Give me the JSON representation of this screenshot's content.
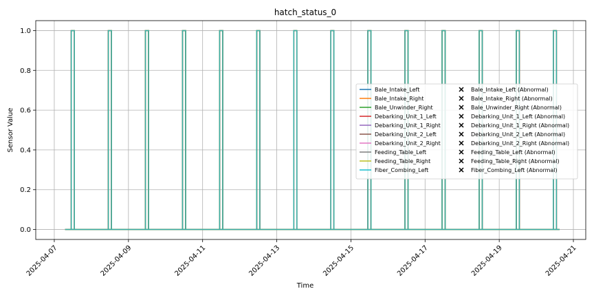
{
  "chart_data": {
    "type": "line",
    "title": "hatch_status_0",
    "xlabel": "Time",
    "ylabel": "Sensor Value",
    "xlim": [
      "2025-04-06T12:00",
      "2025-04-21T08:00"
    ],
    "ylim": [
      -0.05,
      1.05
    ],
    "x_ticks": [
      "2025-04-07",
      "2025-04-09",
      "2025-04-11",
      "2025-04-13",
      "2025-04-15",
      "2025-04-17",
      "2025-04-19",
      "2025-04-21"
    ],
    "y_ticks": [
      "0.0",
      "0.2",
      "0.4",
      "0.6",
      "0.8",
      "1.0"
    ],
    "grid": true,
    "legend_position": "right",
    "x_range": [
      "2025-04-07T07:00",
      "2025-04-20T15:00"
    ],
    "baseline_value": 0.0,
    "pulse_value": 1.0,
    "pulse_times": [
      "2025-04-07T12:00",
      "2025-04-08T12:00",
      "2025-04-09T12:00",
      "2025-04-10T12:00",
      "2025-04-11T12:00",
      "2025-04-12T12:00",
      "2025-04-13T12:00",
      "2025-04-14T12:00",
      "2025-04-15T12:00",
      "2025-04-16T12:00",
      "2025-04-17T12:00",
      "2025-04-18T12:00",
      "2025-04-19T12:00",
      "2025-04-20T12:00"
    ],
    "series": [
      {
        "name": "Bale_Intake_Left",
        "color": "#1f77b4"
      },
      {
        "name": "Bale_Intake_Right",
        "color": "#ff7f0e"
      },
      {
        "name": "Bale_Unwinder_Right",
        "color": "#2ca02c"
      },
      {
        "name": "Debarking_Unit_1_Left",
        "color": "#d62728"
      },
      {
        "name": "Debarking_Unit_1_Right",
        "color": "#9467bd"
      },
      {
        "name": "Debarking_Unit_2_Left",
        "color": "#8c564b"
      },
      {
        "name": "Debarking_Unit_2_Right",
        "color": "#e377c2"
      },
      {
        "name": "Feeding_Table_Left",
        "color": "#7f7f7f"
      },
      {
        "name": "Feeding_Table_Right",
        "color": "#bcbd22"
      },
      {
        "name": "Fiber_Combing_Left",
        "color": "#17becf"
      }
    ],
    "abnormal_series": [
      {
        "name": "Bale_Intake_Left (Abnormal)"
      },
      {
        "name": "Bale_Intake_Right (Abnormal)"
      },
      {
        "name": "Bale_Unwinder_Right (Abnormal)"
      },
      {
        "name": "Debarking_Unit_1_Left (Abnormal)"
      },
      {
        "name": "Debarking_Unit_1_Right (Abnormal)"
      },
      {
        "name": "Debarking_Unit_2_Left (Abnormal)"
      },
      {
        "name": "Debarking_Unit_2_Right (Abnormal)"
      },
      {
        "name": "Feeding_Table_Left (Abnormal)"
      },
      {
        "name": "Feeding_Table_Right (Abnormal)"
      },
      {
        "name": "Fiber_Combing_Left (Abnormal)"
      }
    ],
    "line_color_visible": "#3aafa9"
  }
}
